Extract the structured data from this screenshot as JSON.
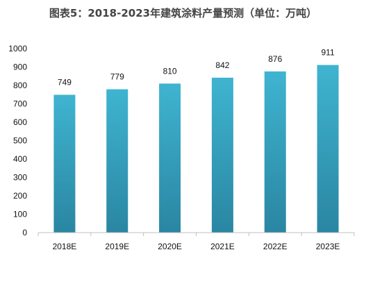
{
  "chart_data": {
    "type": "bar",
    "title": "图表5：2018-2023年建筑涂料产量预测（单位：万吨）",
    "categories": [
      "2018E",
      "2019E",
      "2020E",
      "2021E",
      "2022E",
      "2023E"
    ],
    "values": [
      749,
      779,
      810,
      842,
      876,
      911
    ],
    "data_labels": [
      "749",
      "779",
      "810",
      "842",
      "876",
      "911"
    ],
    "ylim": [
      0,
      1000
    ],
    "yticks": [
      "0",
      "100",
      "200",
      "300",
      "400",
      "500",
      "600",
      "700",
      "800",
      "900",
      "1000"
    ],
    "grid": false,
    "bar_color_top": "#3fb4d0",
    "bar_color_bottom": "#2a86a2"
  }
}
